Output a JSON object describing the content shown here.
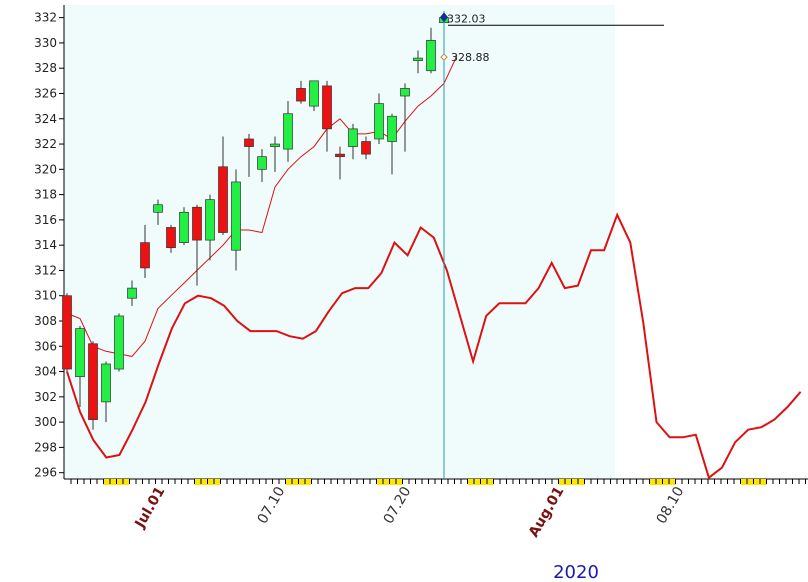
{
  "chart_data": {
    "type": "candlestick",
    "y_range": [
      295.5,
      333
    ],
    "y_ticks": [
      "296",
      "298",
      "300",
      "302",
      "304",
      "306",
      "308",
      "310",
      "312",
      "314",
      "316",
      "318",
      "320",
      "322",
      "324",
      "326",
      "328",
      "330",
      "332"
    ],
    "candles": [
      {
        "o": 310,
        "h": 310.2,
        "l": 304,
        "c": 304.2
      },
      {
        "o": 303.6,
        "h": 307.6,
        "l": 301.2,
        "c": 307.4
      },
      {
        "o": 306.2,
        "h": 306.4,
        "l": 299.4,
        "c": 300.2
      },
      {
        "o": 301.6,
        "h": 304.8,
        "l": 300,
        "c": 304.6
      },
      {
        "o": 304.2,
        "h": 308.6,
        "l": 304,
        "c": 308.4
      },
      {
        "o": 309.8,
        "h": 311.2,
        "l": 309.2,
        "c": 310.6
      },
      {
        "o": 314.2,
        "h": 315.6,
        "l": 311.4,
        "c": 312.2
      },
      {
        "o": 316.6,
        "h": 317.6,
        "l": 315.6,
        "c": 317.2
      },
      {
        "o": 315.4,
        "h": 315.6,
        "l": 313.4,
        "c": 313.8
      },
      {
        "o": 314.2,
        "h": 317,
        "l": 314,
        "c": 316.6
      },
      {
        "o": 317,
        "h": 317.2,
        "l": 310.8,
        "c": 314.4
      },
      {
        "o": 314.4,
        "h": 318,
        "l": 312.8,
        "c": 317.6
      },
      {
        "o": 320.2,
        "h": 322.6,
        "l": 314.8,
        "c": 315
      },
      {
        "o": 313.6,
        "h": 320,
        "l": 312,
        "c": 319
      },
      {
        "o": 322.4,
        "h": 322.8,
        "l": 319.4,
        "c": 321.8
      },
      {
        "o": 320,
        "h": 321.6,
        "l": 319,
        "c": 321
      },
      {
        "o": 321.8,
        "h": 322.6,
        "l": 319.8,
        "c": 322
      },
      {
        "o": 321.6,
        "h": 325.4,
        "l": 320.6,
        "c": 324.4
      },
      {
        "o": 326.4,
        "h": 327,
        "l": 325.2,
        "c": 325.4
      },
      {
        "o": 325,
        "h": 327,
        "l": 324.6,
        "c": 327
      },
      {
        "o": 326.6,
        "h": 327,
        "l": 321.4,
        "c": 323.2
      },
      {
        "o": 321.2,
        "h": 321.8,
        "l": 319.2,
        "c": 321
      },
      {
        "o": 321.8,
        "h": 323.6,
        "l": 320.8,
        "c": 323.2
      },
      {
        "o": 322.2,
        "h": 322.6,
        "l": 320.8,
        "c": 321.2
      },
      {
        "o": 322.4,
        "h": 326,
        "l": 322,
        "c": 325.2
      },
      {
        "o": 322.2,
        "h": 324.4,
        "l": 319.6,
        "c": 324.2
      },
      {
        "o": 325.8,
        "h": 326.8,
        "l": 321.4,
        "c": 326.4
      },
      {
        "o": 328.6,
        "h": 329.4,
        "l": 327.6,
        "c": 328.8
      },
      {
        "o": 327.8,
        "h": 331.2,
        "l": 327.6,
        "c": 330.2
      },
      {
        "o": 331.6,
        "h": 332.4,
        "l": 331.4,
        "c": 332
      }
    ],
    "thin_line": [
      308.6,
      308.2,
      306,
      305.6,
      305.4,
      305.2,
      306.4,
      309,
      310,
      311,
      312,
      313,
      314,
      315.2,
      315.2,
      315,
      318.6,
      320,
      321,
      321.8,
      323.2,
      324,
      322.8,
      322.8,
      323,
      322.4,
      323.8,
      325,
      325.8,
      326.8,
      329
    ],
    "thick_line": [
      304,
      300.8,
      298.6,
      297.2,
      297.4,
      299.4,
      301.6,
      304.6,
      307.4,
      309.4,
      310,
      309.8,
      309.2,
      308,
      307.2,
      307.2,
      307.2,
      306.8,
      306.6,
      307.2,
      308.8,
      310.2,
      310.6,
      310.6,
      311.8,
      314.2,
      313.2,
      315.4,
      314.6,
      312,
      308.4,
      304.8,
      308.4,
      309.4,
      309.4,
      309.4,
      310.6,
      312.6,
      310.6,
      310.8,
      313.6,
      313.6,
      316.4,
      314.2,
      307.8,
      300,
      298.8,
      298.8,
      299,
      295.6,
      296.4,
      298.4,
      299.4,
      299.6,
      300.2,
      301.2,
      302.4
    ],
    "annotations": [
      {
        "label": "332.03",
        "value": 332.03
      },
      {
        "label": "328.88",
        "value": 328.88
      }
    ],
    "date_labels": [
      {
        "text": "Jul.01",
        "style": "month"
      },
      {
        "text": "07.10",
        "style": "date"
      },
      {
        "text": "07.20",
        "style": "date"
      },
      {
        "text": "Aug.01",
        "style": "month"
      },
      {
        "text": "08.10",
        "style": "date"
      }
    ],
    "year_label": "2020",
    "colors": {
      "up": "#22ee44",
      "down": "#ee1111",
      "line": "#dd1111",
      "panel_bg": "#f0fcfc",
      "vertical_line": "#2a9ab0",
      "marker": "#1a2a9a",
      "weekend_mark": "#ffe600"
    }
  }
}
